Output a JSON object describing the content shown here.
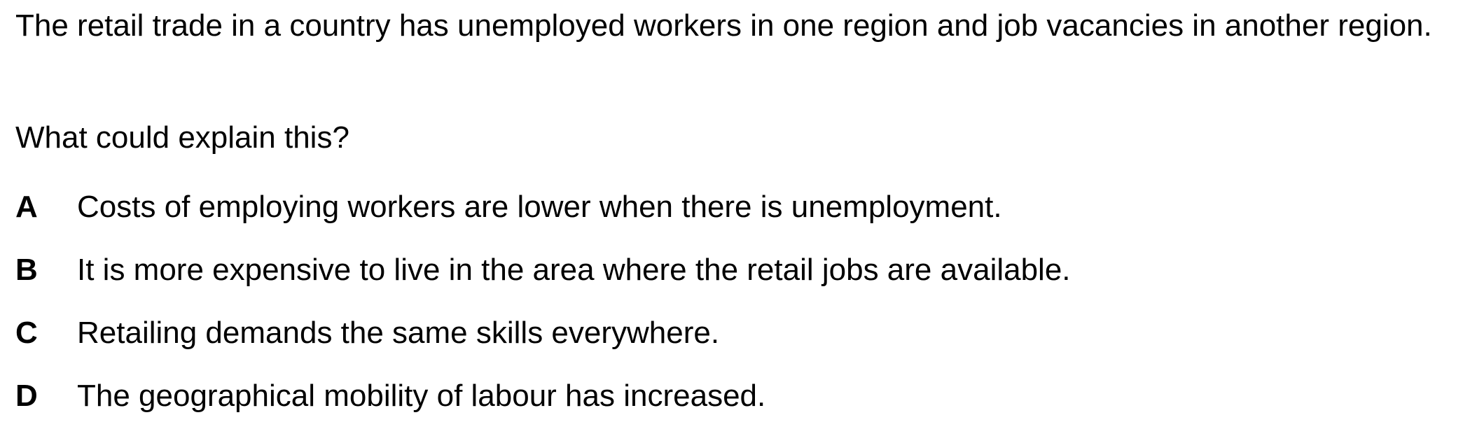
{
  "question": {
    "stem": "The retail trade in a country has unemployed workers in one region and job vacancies in another region.",
    "prompt": "What could explain this?",
    "options": [
      {
        "letter": "A",
        "text": "Costs of employing workers are lower when there is unemployment."
      },
      {
        "letter": "B",
        "text": "It is more expensive to live in the area where the retail jobs are available."
      },
      {
        "letter": "C",
        "text": "Retailing demands the same skills everywhere."
      },
      {
        "letter": "D",
        "text": "The geographical mobility of labour has increased."
      }
    ]
  }
}
